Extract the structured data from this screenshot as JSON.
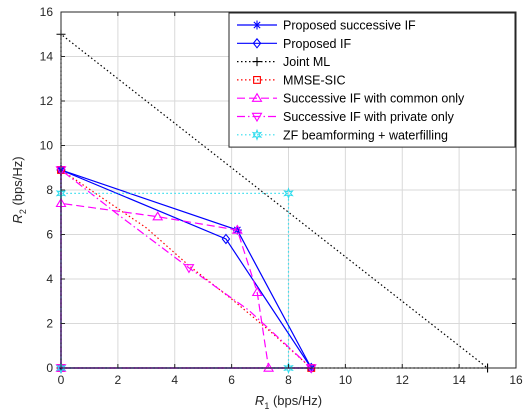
{
  "chart_data": {
    "type": "line",
    "title": "",
    "xlabel": "R",
    "xlabel_sub": "1",
    "xlabel_unit": " (bps/Hz)",
    "ylabel": "R",
    "ylabel_sub": "2",
    "ylabel_unit": " (bps/Hz)",
    "xlim": [
      0,
      16
    ],
    "ylim": [
      0,
      16
    ],
    "xticks": [
      "0",
      "2",
      "4",
      "6",
      "8",
      "10",
      "12",
      "14",
      "16"
    ],
    "yticks": [
      "0",
      "2",
      "4",
      "6",
      "8",
      "10",
      "12",
      "14",
      "16"
    ],
    "grid": true,
    "legend_position": "top-right",
    "series": [
      {
        "name": "Proposed successive IF",
        "color": "#0000ff",
        "line": "solid",
        "marker": "star",
        "points": [
          [
            0,
            0
          ],
          [
            0,
            8.9
          ],
          [
            6.2,
            6.2
          ],
          [
            8.8,
            0
          ],
          [
            0,
            0
          ]
        ],
        "markers": [
          [
            0,
            0
          ],
          [
            0,
            8.9
          ],
          [
            6.2,
            6.2
          ],
          [
            8.8,
            0
          ]
        ]
      },
      {
        "name": "Proposed IF",
        "color": "#0000ff",
        "line": "solid",
        "marker": "diamond",
        "points": [
          [
            0,
            0
          ],
          [
            0,
            8.9
          ],
          [
            5.8,
            5.8
          ],
          [
            8.8,
            0
          ],
          [
            0,
            0
          ]
        ],
        "markers": [
          [
            0,
            0
          ],
          [
            0,
            8.9
          ],
          [
            5.8,
            5.8
          ],
          [
            8.8,
            0
          ]
        ]
      },
      {
        "name": "Joint ML",
        "color": "#000000",
        "line": "dotted",
        "marker": "plus",
        "points": [
          [
            0,
            0
          ],
          [
            0,
            15
          ],
          [
            15,
            0
          ],
          [
            0,
            0
          ]
        ],
        "markers": [
          [
            0,
            0
          ],
          [
            0,
            15
          ],
          [
            15,
            0
          ]
        ]
      },
      {
        "name": "MMSE-SIC",
        "color": "#ff0000",
        "line": "dotted",
        "marker": "square",
        "points": [
          [
            0,
            0
          ],
          [
            0,
            8.9
          ],
          [
            1.5,
            7.6
          ],
          [
            3,
            6.3
          ],
          [
            4.5,
            4.6
          ],
          [
            6,
            3.1
          ],
          [
            7.4,
            1.6
          ],
          [
            8.8,
            0
          ],
          [
            0,
            0
          ]
        ],
        "markers": [
          [
            0,
            0
          ],
          [
            0,
            8.9
          ],
          [
            8.8,
            0
          ]
        ]
      },
      {
        "name": "Successive IF with common only",
        "color": "#ff00ff",
        "line": "dashed",
        "marker": "triangle-up",
        "points": [
          [
            0,
            0
          ],
          [
            0,
            7.4
          ],
          [
            3.4,
            6.8
          ],
          [
            6.2,
            6.2
          ],
          [
            6.9,
            3.4
          ],
          [
            7.3,
            0
          ],
          [
            0,
            0
          ]
        ],
        "markers": [
          [
            0,
            0
          ],
          [
            0,
            7.4
          ],
          [
            3.4,
            6.8
          ],
          [
            6.2,
            6.2
          ],
          [
            6.9,
            3.4
          ],
          [
            7.3,
            0
          ]
        ]
      },
      {
        "name": "Successive IF with private only",
        "color": "#ff00ff",
        "line": "dashdot",
        "marker": "triangle-down",
        "points": [
          [
            0,
            0
          ],
          [
            0,
            8.9
          ],
          [
            2,
            6.9
          ],
          [
            4.5,
            4.5
          ],
          [
            6.6,
            2.6
          ],
          [
            8.8,
            0
          ],
          [
            0,
            0
          ]
        ],
        "markers": [
          [
            0,
            0
          ],
          [
            0,
            8.9
          ],
          [
            4.5,
            4.5
          ],
          [
            8.8,
            0
          ]
        ]
      },
      {
        "name": "ZF beamforming + waterfilling",
        "color": "#33ddee",
        "line": "dotted",
        "marker": "hexagram",
        "points": [
          [
            0,
            0
          ],
          [
            0,
            7.85
          ],
          [
            8,
            7.85
          ],
          [
            8,
            0
          ],
          [
            0,
            0
          ]
        ],
        "markers": [
          [
            0,
            0
          ],
          [
            0,
            7.85
          ],
          [
            8,
            7.85
          ],
          [
            8,
            0
          ]
        ]
      }
    ]
  }
}
